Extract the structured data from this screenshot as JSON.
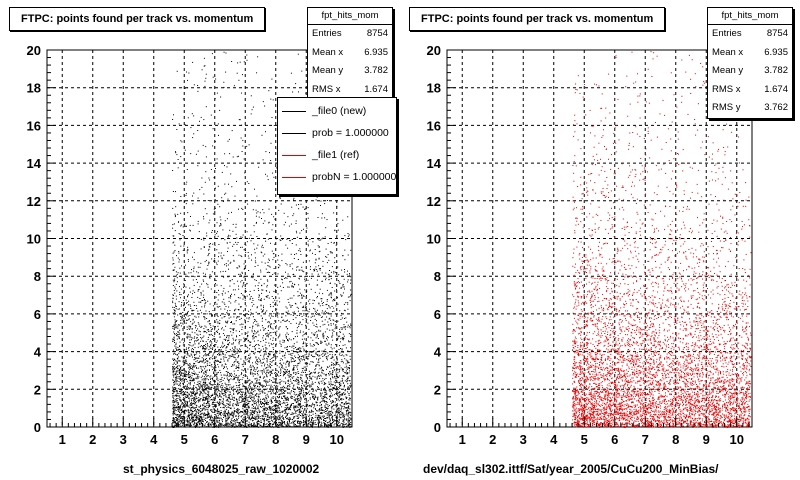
{
  "colors": {
    "left_series": "#000000",
    "right_series": "#e60000",
    "pad_bg": "#ffffff"
  },
  "chart_data": [
    {
      "type": "scatter",
      "title": "FTPC: points found per track vs. momentum",
      "xlabel": "st_physics_6048025_raw_1020002",
      "ylabel": "",
      "xlim": [
        0.5,
        10.5
      ],
      "ylim": [
        0,
        20
      ],
      "x_ticks": [
        "1",
        "2",
        "3",
        "4",
        "5",
        "6",
        "7",
        "8",
        "9",
        "10"
      ],
      "y_ticks": [
        "0",
        "2",
        "4",
        "6",
        "8",
        "10",
        "12",
        "14",
        "16",
        "18",
        "20"
      ],
      "grid": true,
      "legend": "top-right",
      "stats": {
        "name": "fpt_hits_mom",
        "rows": [
          {
            "label": "Entries",
            "value": "8754"
          },
          {
            "label": "Mean x",
            "value": "6.935"
          },
          {
            "label": "Mean y",
            "value": "3.782"
          },
          {
            "label": "RMS x",
            "value": "1.674"
          }
        ]
      },
      "legend_entries": [
        {
          "label": "_file0 (new)",
          "color": "#000000"
        },
        {
          "label": "prob = 1.000000",
          "color": "#000000"
        },
        {
          "label": "_file1 (ref)",
          "color": "#e60000"
        },
        {
          "label": "probN = 1.000000",
          "color": "#e60000"
        }
      ],
      "series": [
        {
          "color": "#000000",
          "entries": 8754,
          "mean_x": 6.935,
          "mean_y": 3.782,
          "rms_x": 1.674,
          "x_min": 4.6
        }
      ]
    },
    {
      "type": "scatter",
      "title": "FTPC: points found per track vs. momentum",
      "xlabel": "dev/daq_sl302.ittf/Sat/year_2005/CuCu200_MinBias/",
      "ylabel": "",
      "xlim": [
        0.5,
        10.5
      ],
      "ylim": [
        0,
        20
      ],
      "x_ticks": [
        "1",
        "2",
        "3",
        "4",
        "5",
        "6",
        "7",
        "8",
        "9",
        "10"
      ],
      "y_ticks": [
        "0",
        "2",
        "4",
        "6",
        "8",
        "10",
        "12",
        "14",
        "16",
        "18",
        "20"
      ],
      "grid": true,
      "stats": {
        "name": "fpt_hits_mom",
        "rows": [
          {
            "label": "Entries",
            "value": "8754"
          },
          {
            "label": "Mean x",
            "value": "6.935"
          },
          {
            "label": "Mean y",
            "value": "3.782"
          },
          {
            "label": "RMS x",
            "value": "1.674"
          },
          {
            "label": "RMS y",
            "value": "3.762"
          }
        ]
      },
      "series": [
        {
          "color": "#e60000",
          "entries": 8754,
          "mean_x": 6.935,
          "mean_y": 3.782,
          "rms_x": 1.674,
          "rms_y": 3.762,
          "x_min": 4.6
        }
      ]
    }
  ]
}
